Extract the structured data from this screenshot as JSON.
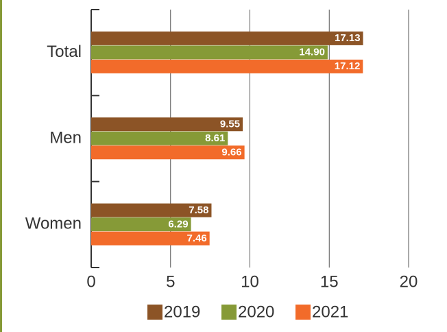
{
  "chart_data": {
    "type": "barh",
    "categories": [
      "Total",
      "Men",
      "Women"
    ],
    "series": [
      {
        "name": "2019",
        "color": "#8c5426",
        "values": [
          17.13,
          9.55,
          7.58
        ],
        "value_labels": [
          "17.13",
          "9.55",
          "7.58"
        ]
      },
      {
        "name": "2020",
        "color": "#869a37",
        "values": [
          14.9,
          8.61,
          6.29
        ],
        "value_labels": [
          "14.90",
          "8.61",
          "6.29"
        ]
      },
      {
        "name": "2021",
        "color": "#f26b2a",
        "values": [
          17.12,
          9.66,
          7.46
        ],
        "value_labels": [
          "17.12",
          "9.66",
          "7.46"
        ]
      }
    ],
    "xlim": [
      0,
      20
    ],
    "xticks": [
      0,
      5,
      10,
      15,
      20
    ],
    "grid": true,
    "legend": "bottom"
  }
}
